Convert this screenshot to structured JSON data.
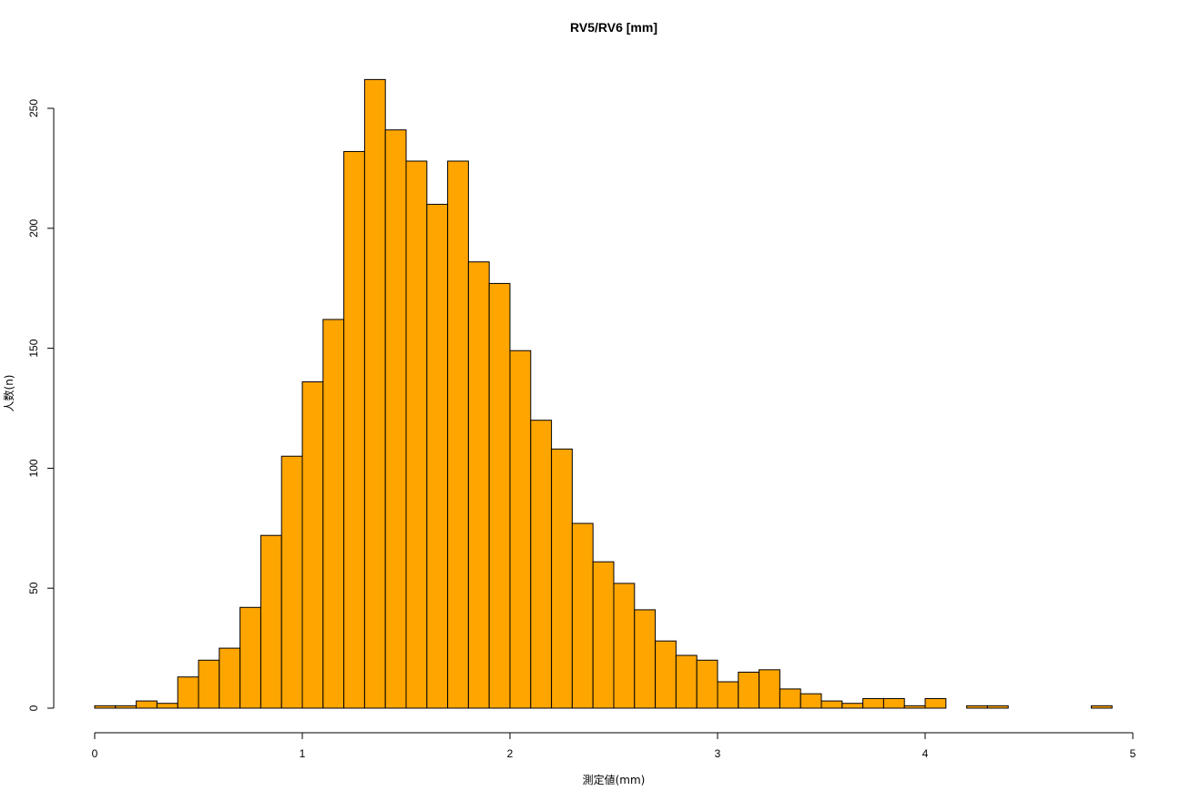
{
  "chart_data": {
    "type": "bar",
    "title": "RV5/RV6 [mm]",
    "xlabel": "測定値(mm)",
    "ylabel": "人数(n)",
    "xlim": [
      0,
      5
    ],
    "ylim": [
      0,
      250
    ],
    "x_ticks": [
      "0",
      "1",
      "2",
      "3",
      "4",
      "5"
    ],
    "y_ticks": [
      "0",
      "50",
      "100",
      "150",
      "200",
      "250"
    ],
    "bin_width": 0.1,
    "bin_starts": [
      0.0,
      0.1,
      0.2,
      0.3,
      0.4,
      0.5,
      0.6,
      0.7,
      0.8,
      0.9,
      1.0,
      1.1,
      1.2,
      1.3,
      1.4,
      1.5,
      1.6,
      1.7,
      1.8,
      1.9,
      2.0,
      2.1,
      2.2,
      2.3,
      2.4,
      2.5,
      2.6,
      2.7,
      2.8,
      2.9,
      3.0,
      3.1,
      3.2,
      3.3,
      3.4,
      3.5,
      3.6,
      3.7,
      3.8,
      3.9,
      4.0,
      4.1,
      4.2,
      4.3,
      4.4,
      4.5,
      4.6,
      4.7,
      4.8
    ],
    "values": [
      1,
      1,
      3,
      2,
      13,
      20,
      25,
      42,
      72,
      105,
      136,
      162,
      232,
      262,
      241,
      228,
      210,
      228,
      186,
      177,
      149,
      120,
      108,
      77,
      61,
      52,
      41,
      28,
      22,
      20,
      11,
      15,
      16,
      8,
      6,
      3,
      2,
      4,
      4,
      1,
      4,
      0,
      1,
      1,
      0,
      0,
      0,
      0,
      1
    ],
    "grid": false,
    "bar_color": "#FFA500",
    "edge_color": "#000000"
  }
}
